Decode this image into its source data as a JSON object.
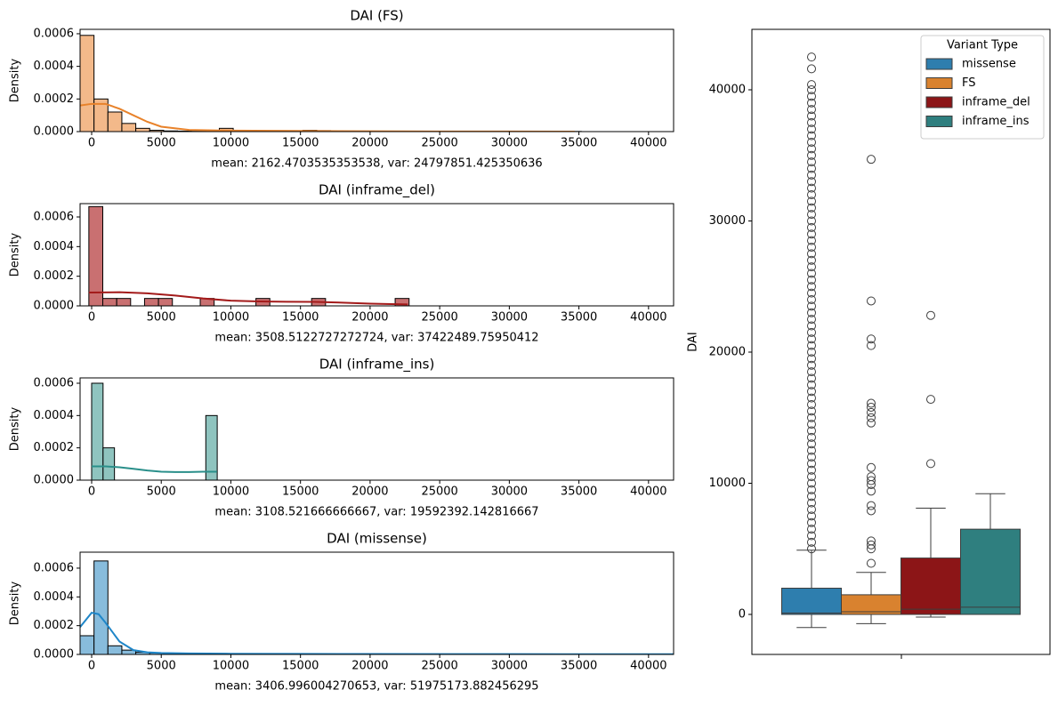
{
  "chart_data": [
    {
      "type": "histogram",
      "title": "DAI (FS)",
      "xlabel": "mean: 2162.4703535353538, var: 24797851.425350636",
      "ylabel": "Density",
      "bins": [
        -830,
        170,
        1170,
        2170,
        3170,
        4170,
        5170,
        6170,
        7170,
        8170,
        9170,
        10170,
        11170,
        12170,
        13170,
        14170,
        15170,
        16170,
        17170,
        18170,
        19170,
        20170,
        21170,
        22170,
        23170,
        24170,
        25170,
        26170,
        27170,
        28170,
        29170,
        30170,
        31170,
        32170,
        33170,
        34170,
        35170
      ],
      "values": [
        0.00059,
        0.0002,
        0.00012,
        5e-05,
        2e-05,
        8e-06,
        4e-06,
        3e-06,
        2e-06,
        2e-06,
        2e-05,
        4e-06,
        2e-06,
        2e-06,
        2e-06,
        2e-06,
        8e-06,
        6e-06,
        1e-06,
        1e-06,
        1e-06,
        1e-06,
        1e-06,
        1e-06,
        1e-06,
        1e-06,
        1e-06,
        1e-06,
        1e-06,
        1e-06,
        1e-06,
        1e-06,
        1e-06,
        1e-06,
        1e-06,
        1e-06
      ],
      "color": "#f3b98a",
      "kde": {
        "color": "#e8822a",
        "x": [
          -830,
          0,
          1000,
          2000,
          3000,
          4000,
          5000,
          7000,
          10000,
          15000,
          20000,
          25000,
          30000,
          34700
        ],
        "values": [
          0.00016,
          0.00017,
          0.00017,
          0.00014,
          0.0001,
          6e-05,
          3e-05,
          1e-05,
          6e-06,
          4e-06,
          2e-06,
          1e-06,
          5e-07,
          3e-07
        ]
      },
      "xlim": [
        -830,
        41800
      ],
      "ylim": [
        0,
        0.000627
      ],
      "xticks": [
        0,
        5000,
        10000,
        15000,
        20000,
        25000,
        30000,
        35000,
        40000
      ],
      "yticks": [
        {
          "value": 0,
          "label": "0.0000"
        },
        0.0002,
        0.0004,
        0.0006
      ]
    },
    {
      "type": "histogram",
      "title": "DAI (inframe_del)",
      "xlabel": "mean: 3508.5122727272724, var: 37422489.75950412",
      "ylabel": "Density",
      "bins": [
        -200,
        800,
        1800,
        2800,
        3800,
        4800,
        5800,
        6800,
        7800,
        8800,
        9800,
        10800,
        11800,
        12800,
        13800,
        14800,
        15800,
        16800,
        17800,
        18800,
        19800,
        20800,
        21800,
        22800
      ],
      "values": [
        0.00067,
        5e-05,
        5e-05,
        0,
        5e-05,
        5e-05,
        0,
        0,
        5e-05,
        0,
        0,
        0,
        5e-05,
        0,
        0,
        0,
        5e-05,
        0,
        0,
        0,
        0,
        0,
        5e-05
      ],
      "color": "#c97071",
      "kde": {
        "color": "#a31a1a",
        "x": [
          -200,
          2000,
          4000,
          6000,
          8000,
          10000,
          12000,
          14000,
          16000,
          18000,
          20000,
          22700
        ],
        "values": [
          9e-05,
          9.2e-05,
          8.5e-05,
          7e-05,
          5e-05,
          3.5e-05,
          3e-05,
          2.8e-05,
          2.7e-05,
          2.2e-05,
          1.5e-05,
          1e-05
        ]
      },
      "xlim": [
        -830,
        41800
      ],
      "ylim": [
        0,
        0.00069
      ],
      "xticks": [
        0,
        5000,
        10000,
        15000,
        20000,
        25000,
        30000,
        35000,
        40000
      ],
      "yticks": [
        {
          "value": 0,
          "label": "0.0000"
        },
        0.0002,
        0.0004,
        0.0006
      ]
    },
    {
      "type": "histogram",
      "title": "DAI (inframe_ins)",
      "xlabel": "mean: 3108.521666666667, var: 19592392.142816667",
      "ylabel": "Density",
      "bins": [
        0,
        820,
        1640,
        2460,
        3280,
        4100,
        4920,
        5740,
        6560,
        7380,
        8200,
        9020
      ],
      "values": [
        0.0006,
        0.0002,
        0,
        0,
        0,
        0,
        0,
        0,
        0,
        0,
        0.0004
      ],
      "color": "#8fc4bf",
      "kde": {
        "color": "#2a8f8a",
        "x": [
          0,
          1000,
          2000,
          3000,
          4000,
          5000,
          6000,
          7000,
          8000,
          9000
        ],
        "values": [
          8.5e-05,
          8.5e-05,
          8e-05,
          7e-05,
          6e-05,
          5.2e-05,
          5e-05,
          5e-05,
          5.2e-05,
          5.2e-05
        ]
      },
      "xlim": [
        -830,
        41800
      ],
      "ylim": [
        0,
        0.000633
      ],
      "xticks": [
        0,
        5000,
        10000,
        15000,
        20000,
        25000,
        30000,
        35000,
        40000
      ],
      "yticks": [
        {
          "value": 0,
          "label": "0.0000"
        },
        0.0002,
        0.0004,
        0.0006
      ]
    },
    {
      "type": "histogram",
      "title": "DAI (missense)",
      "xlabel": "mean: 3406.996004270653, var: 51975173.882456295",
      "ylabel": "Density",
      "bins": [
        -830,
        170,
        1170,
        2170,
        3170,
        4170,
        5170,
        6170,
        7170,
        8170,
        9170,
        10170,
        11170,
        12170,
        13170,
        14170,
        15170,
        16170,
        17170,
        18170,
        19170,
        20170,
        21170,
        22170,
        23170,
        24170,
        25170,
        26170,
        27170,
        28170,
        29170,
        30170,
        31170,
        32170,
        33170,
        34170,
        35170,
        36170,
        37170,
        38170,
        39170,
        40170,
        41170
      ],
      "values": [
        0.00013,
        0.00065,
        6e-05,
        3e-05,
        1.5e-05,
        1e-05,
        8e-06,
        7e-06,
        6e-06,
        5e-06,
        4e-06,
        4e-06,
        4e-06,
        4e-06,
        4e-06,
        4e-06,
        4e-06,
        4e-06,
        4e-06,
        4e-06,
        3e-06,
        3e-06,
        3e-06,
        3e-06,
        3e-06,
        3e-06,
        3e-06,
        3e-06,
        3e-06,
        3e-06,
        2e-06,
        2e-06,
        2e-06,
        2e-06,
        2e-06,
        2e-06,
        2e-06,
        2e-06,
        2e-06,
        2e-06,
        2e-06,
        2e-06
      ],
      "color": "#88bcdc",
      "kde": {
        "color": "#1f86c8",
        "x": [
          -830,
          0,
          500,
          1000,
          2000,
          3000,
          4000,
          5000,
          7000,
          10000,
          15000,
          20000,
          30000,
          41800
        ],
        "values": [
          0.00019,
          0.00029,
          0.00028,
          0.00022,
          9e-05,
          3e-05,
          1.5e-05,
          1e-05,
          7e-06,
          5e-06,
          4e-06,
          3e-06,
          2e-06,
          1.5e-06
        ]
      },
      "xlim": [
        -830,
        41800
      ],
      "ylim": [
        0,
        0.000711
      ],
      "xticks": [
        0,
        5000,
        10000,
        15000,
        20000,
        25000,
        30000,
        35000,
        40000
      ],
      "yticks": [
        {
          "value": 0,
          "label": "0.0000"
        },
        0.0002,
        0.0004,
        0.0006
      ]
    },
    {
      "type": "box",
      "ylabel": "DAI",
      "ylim": [
        -3050,
        44610
      ],
      "yticks": [
        0,
        10000,
        20000,
        30000,
        40000
      ],
      "legend_title": "Variant Type",
      "legend": "upper right",
      "series": [
        {
          "name": "missense",
          "color": "#2e7eae",
          "whislo": -1000,
          "q1": 0,
          "med": 100,
          "q3": 2000,
          "whishi": 4900,
          "fliers": [
            5000,
            5500,
            6000,
            6500,
            7000,
            7500,
            8000,
            8500,
            9000,
            9500,
            10000,
            10500,
            11000,
            11500,
            12000,
            12500,
            13000,
            13500,
            14000,
            14500,
            15000,
            15500,
            16000,
            16500,
            17000,
            17500,
            18000,
            18500,
            19000,
            19500,
            20000,
            20500,
            21000,
            21500,
            22000,
            22500,
            23000,
            23500,
            24000,
            24500,
            25000,
            25500,
            26000,
            26500,
            27000,
            27500,
            28000,
            28500,
            29000,
            29500,
            30000,
            30500,
            31000,
            31500,
            32000,
            32500,
            33000,
            33500,
            34000,
            34500,
            35000,
            35500,
            36000,
            36500,
            37000,
            37500,
            38000,
            38500,
            39000,
            39500,
            40000,
            40400,
            41600,
            42500
          ]
        },
        {
          "name": "FS",
          "color": "#d9822f",
          "whislo": -700,
          "q1": 0,
          "med": 200,
          "q3": 1500,
          "whishi": 3200,
          "fliers": [
            3900,
            5000,
            5300,
            5600,
            7900,
            8300,
            9400,
            9900,
            10200,
            10500,
            11200,
            14600,
            15000,
            15400,
            15800,
            16100,
            20500,
            21000,
            23900,
            34700
          ]
        },
        {
          "name": "inframe_del",
          "color": "#8c1517",
          "whislo": -200,
          "q1": 0,
          "med": 400,
          "q3": 4300,
          "whishi": 8100,
          "fliers": [
            11500,
            16400,
            22800
          ]
        },
        {
          "name": "inframe_ins",
          "color": "#2f7f7f",
          "whislo": 0,
          "q1": 0,
          "med": 550,
          "q3": 6500,
          "whishi": 9200,
          "fliers": []
        }
      ]
    }
  ]
}
